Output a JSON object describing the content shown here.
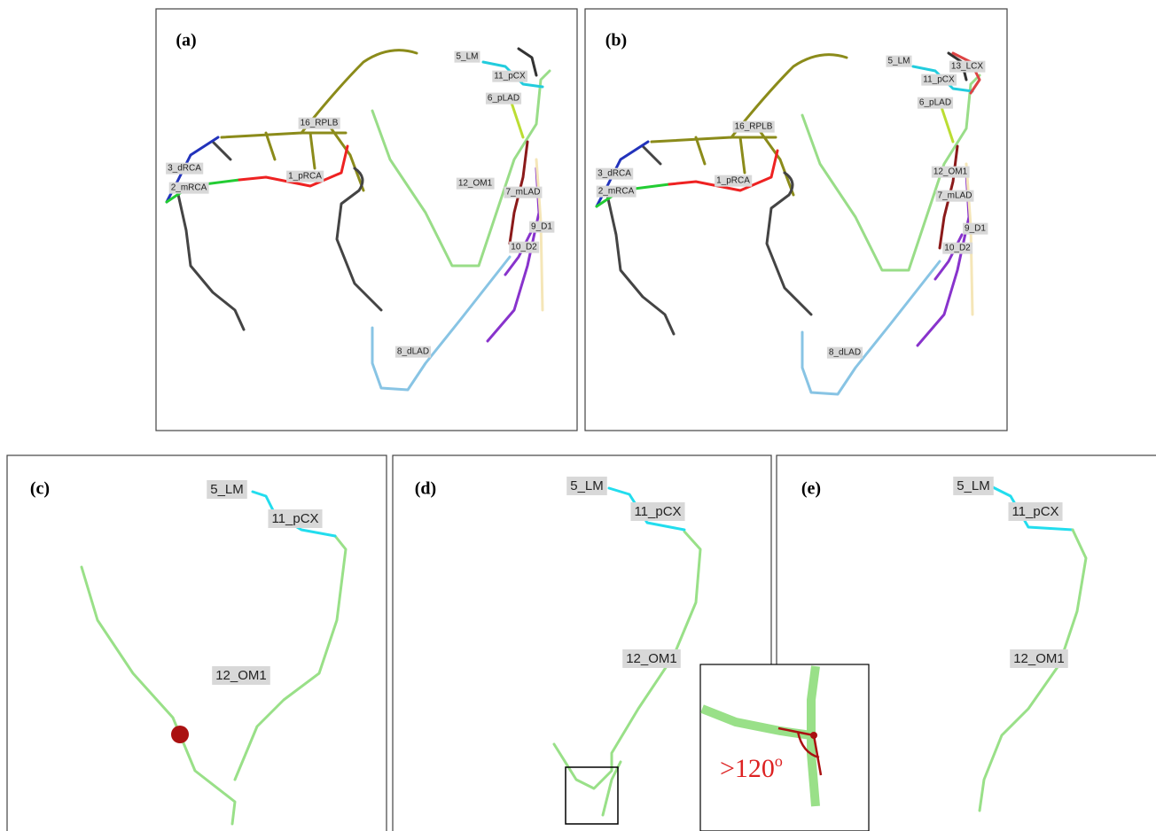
{
  "panels": [
    {
      "label": "(a)",
      "segments": [
        "5_LM",
        "11_pCX",
        "6_pLAD",
        "16_RPLB",
        "3_dRCA",
        "2_mRCA",
        "1_pRCA",
        "12_OM1",
        "7_mLAD",
        "9_D1",
        "10_D2",
        "8_dLAD"
      ]
    },
    {
      "label": "(b)",
      "segments": [
        "5_LM",
        "13_LCX",
        "11_pCX",
        "6_pLAD",
        "16_RPLB",
        "3_dRCA",
        "2_mRCA",
        "1_pRCA",
        "12_OM1",
        "7_mLAD",
        "9_D1",
        "10_D2",
        "8_dLAD"
      ]
    },
    {
      "label": "(c)",
      "segments": [
        "5_LM",
        "11_pCX",
        "12_OM1"
      ]
    },
    {
      "label": "(d)",
      "segments": [
        "5_LM",
        "11_pCX",
        "12_OM1"
      ]
    },
    {
      "label": "(e)",
      "segments": [
        "5_LM",
        "11_pCX",
        "12_OM1"
      ]
    }
  ],
  "annotation": {
    "text": ">120",
    "superscript": "o"
  }
}
